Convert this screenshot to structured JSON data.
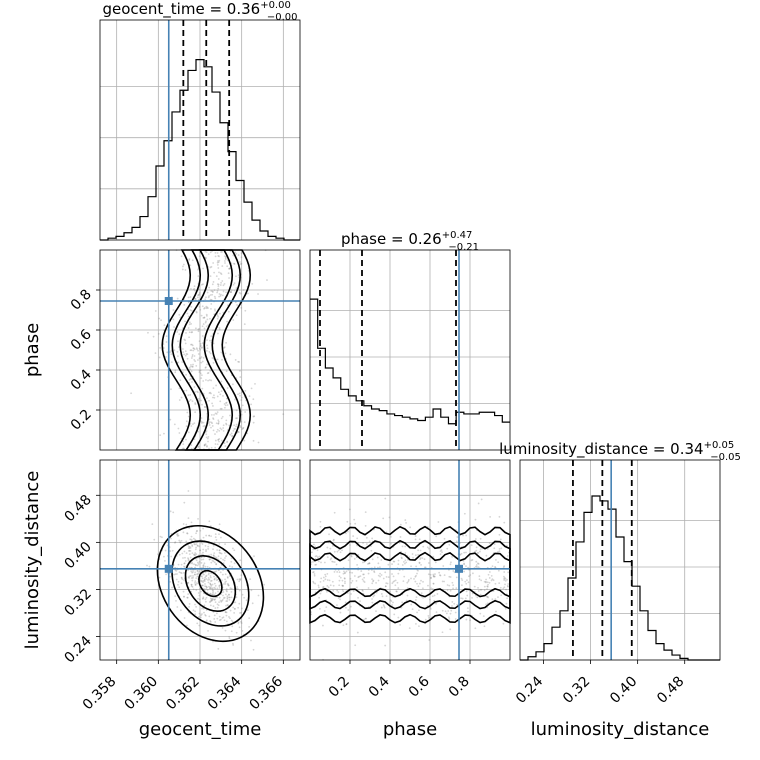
{
  "chart_data": {
    "type": "corner",
    "parameters": [
      "geocent_time",
      "phase",
      "luminosity_distance"
    ],
    "titles": [
      {
        "param": "geocent_time",
        "text": "geocent_time = 0.36",
        "plus": "+0.00",
        "minus": "−0.00"
      },
      {
        "param": "phase",
        "text": "phase = 0.26",
        "plus": "+0.47",
        "minus": "−0.21"
      },
      {
        "param": "luminosity_distance",
        "text": "luminosity_distance = 0.34",
        "plus": "+0.05",
        "minus": "−0.05"
      }
    ],
    "ranges": {
      "geocent_time": [
        0.3572,
        0.3668
      ],
      "phase": [
        0.0,
        1.0
      ],
      "luminosity_distance": [
        0.2,
        0.54
      ]
    },
    "ticks": {
      "geocent_time": {
        "values": [
          0.358,
          0.36,
          0.362,
          0.364,
          0.366
        ],
        "labels": [
          "0.358",
          "0.360",
          "0.362",
          "0.364",
          "0.366"
        ]
      },
      "phase_y": {
        "values": [
          0.2,
          0.4,
          0.6,
          0.8
        ],
        "labels": [
          "0.2",
          "0.4",
          "0.6",
          "0.8"
        ]
      },
      "phase_x": {
        "values": [
          0.2,
          0.4,
          0.6,
          0.8
        ],
        "labels": [
          "0.2",
          "0.4",
          "0.6",
          "0.8"
        ]
      },
      "luminosity_distance_y": {
        "values": [
          0.24,
          0.32,
          0.4,
          0.48
        ],
        "labels": [
          "0.24",
          "0.32",
          "0.40",
          "0.48"
        ]
      },
      "luminosity_distance_x": {
        "values": [
          0.24,
          0.32,
          0.4,
          0.48
        ],
        "labels": [
          "0.24",
          "0.32",
          "0.40",
          "0.48"
        ]
      }
    },
    "axis_labels": {
      "x": [
        "geocent_time",
        "phase",
        "luminosity_distance"
      ],
      "y": [
        "phase",
        "luminosity_distance"
      ]
    },
    "truths": {
      "geocent_time": 0.3605,
      "phase": 0.745,
      "luminosity_distance": 0.355
    },
    "quantiles": {
      "geocent_time": [
        0.3612,
        0.3623,
        0.3634
      ],
      "phase": [
        0.05,
        0.26,
        0.73
      ],
      "luminosity_distance": [
        0.29,
        0.34,
        0.39
      ]
    },
    "histograms": {
      "geocent_time": {
        "bins": [
          0.3572,
          0.3668
        ],
        "counts": [
          0,
          0.01,
          0.02,
          0.04,
          0.07,
          0.13,
          0.24,
          0.41,
          0.55,
          0.71,
          0.83,
          0.94,
          1.0,
          0.96,
          0.82,
          0.65,
          0.49,
          0.33,
          0.21,
          0.11,
          0.05,
          0.02,
          0.01,
          0,
          0
        ]
      },
      "phase": {
        "bins": [
          0.0,
          1.0
        ],
        "counts": [
          0.92,
          0.62,
          0.5,
          0.44,
          0.37,
          0.33,
          0.3,
          0.27,
          0.25,
          0.24,
          0.22,
          0.21,
          0.2,
          0.19,
          0.18,
          0.2,
          0.25,
          0.2,
          0.16,
          0.23,
          0.22,
          0.22,
          0.23,
          0.23,
          0.21,
          0.17
        ]
      },
      "luminosity_distance": {
        "bins": [
          0.2,
          0.54
        ],
        "counts": [
          0.0,
          0.02,
          0.05,
          0.1,
          0.2,
          0.3,
          0.5,
          0.72,
          0.9,
          1.0,
          0.97,
          0.92,
          0.75,
          0.6,
          0.45,
          0.3,
          0.18,
          0.1,
          0.06,
          0.03,
          0.01,
          0.0,
          0.0,
          0.0,
          0.0
        ]
      }
    },
    "grid": true
  },
  "colors": {
    "truth": "#4682b4",
    "contour": "#000000",
    "grid": "#b0b0b0"
  }
}
